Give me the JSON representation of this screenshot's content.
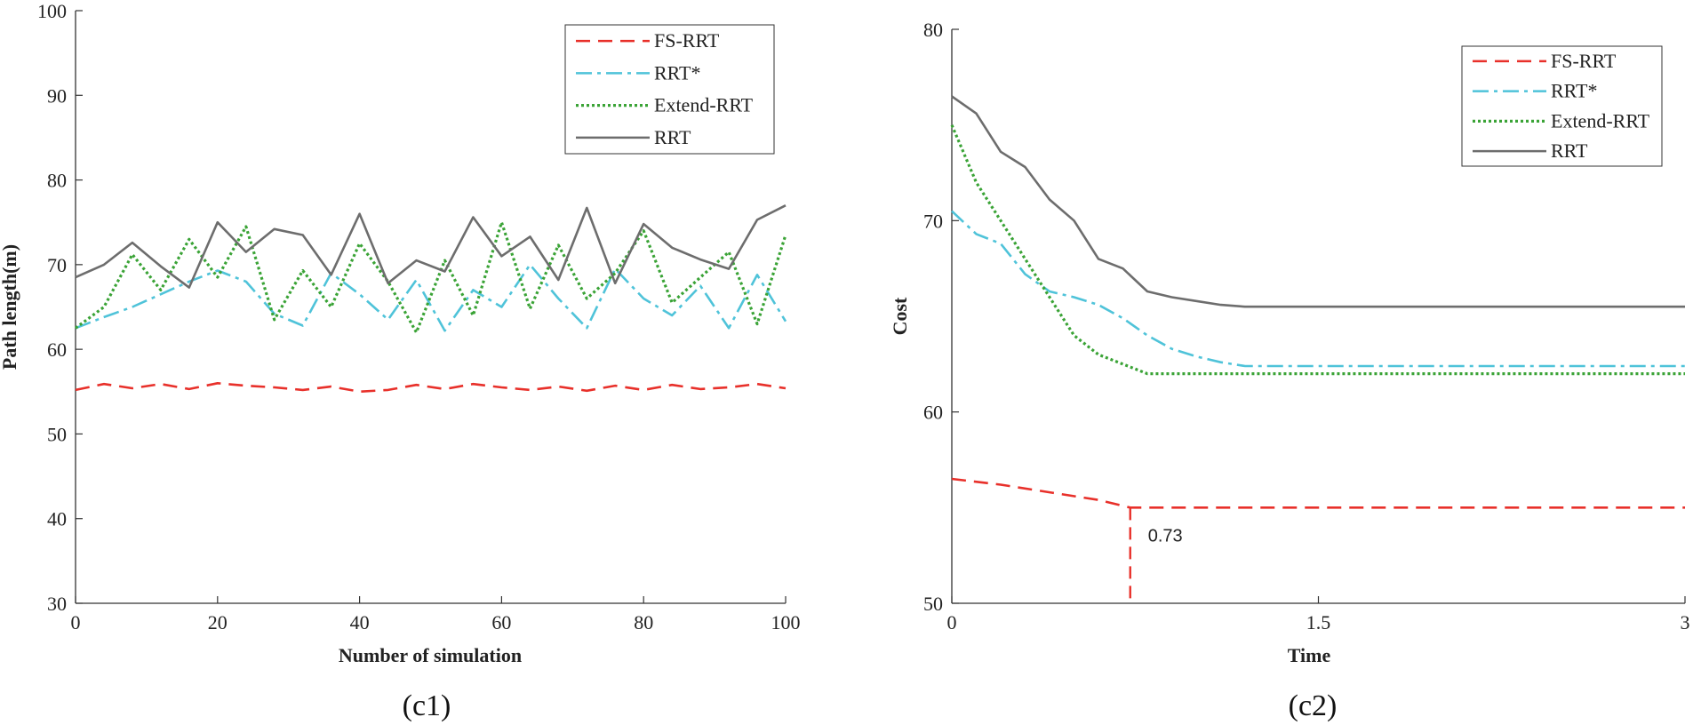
{
  "chart_data": [
    {
      "type": "line",
      "caption": "(c1)",
      "title": "",
      "xlabel": "Number of simulation",
      "ylabel": "Path length(m)",
      "xlim": [
        0,
        100
      ],
      "ylim": [
        30,
        100
      ],
      "xticks": [
        0,
        20,
        40,
        60,
        80,
        100
      ],
      "yticks": [
        30,
        40,
        50,
        60,
        70,
        80,
        90,
        100
      ],
      "legend_position": "top-right",
      "series": [
        {
          "name": "FS-RRT",
          "color": "#e8302a",
          "style": "dashed",
          "x": [
            0,
            4,
            8,
            12,
            16,
            20,
            24,
            28,
            32,
            36,
            40,
            44,
            48,
            52,
            56,
            60,
            64,
            68,
            72,
            76,
            80,
            84,
            88,
            92,
            96,
            100
          ],
          "values": [
            55.2,
            55.9,
            55.4,
            55.9,
            55.3,
            56.0,
            55.7,
            55.5,
            55.2,
            55.6,
            55.0,
            55.2,
            55.8,
            55.3,
            55.9,
            55.5,
            55.2,
            55.6,
            55.1,
            55.7,
            55.2,
            55.8,
            55.3,
            55.5,
            55.9,
            55.4
          ]
        },
        {
          "name": "RRT*",
          "color": "#4fc3d9",
          "style": "dashdot",
          "x": [
            0,
            4,
            8,
            12,
            16,
            20,
            24,
            28,
            32,
            36,
            40,
            44,
            48,
            52,
            56,
            60,
            64,
            68,
            72,
            76,
            80,
            84,
            88,
            92,
            96,
            100
          ],
          "values": [
            62.5,
            63.8,
            65.0,
            66.5,
            68.0,
            69.3,
            68.0,
            64.2,
            62.8,
            69.0,
            66.5,
            63.5,
            68.2,
            62.2,
            67.0,
            65.0,
            70.0,
            66.0,
            62.5,
            69.5,
            66.0,
            64.0,
            67.5,
            62.5,
            68.8,
            63.3
          ]
        },
        {
          "name": "Extend-RRT",
          "color": "#3aa336",
          "style": "dotted",
          "x": [
            0,
            4,
            8,
            12,
            16,
            20,
            24,
            28,
            32,
            36,
            40,
            44,
            48,
            52,
            56,
            60,
            64,
            68,
            72,
            76,
            80,
            84,
            88,
            92,
            96,
            100
          ],
          "values": [
            62.5,
            65.0,
            71.2,
            67.0,
            73.0,
            68.5,
            74.5,
            63.5,
            69.3,
            65.0,
            72.5,
            68.0,
            62.0,
            70.5,
            64.0,
            75.0,
            64.8,
            72.3,
            66.0,
            69.0,
            74.0,
            65.5,
            68.5,
            71.5,
            63.0,
            73.5
          ]
        },
        {
          "name": "RRT",
          "color": "#6d6d6d",
          "style": "solid",
          "x": [
            0,
            4,
            8,
            12,
            16,
            20,
            24,
            28,
            32,
            36,
            40,
            44,
            48,
            52,
            56,
            60,
            64,
            68,
            72,
            76,
            80,
            84,
            88,
            92,
            96,
            100
          ],
          "values": [
            68.5,
            70.0,
            72.6,
            69.8,
            67.3,
            75.0,
            71.5,
            74.2,
            73.5,
            68.8,
            76.0,
            67.8,
            70.5,
            69.2,
            75.6,
            71.0,
            73.3,
            68.2,
            76.7,
            67.8,
            74.8,
            72.0,
            70.6,
            69.5,
            75.3,
            77.0
          ]
        }
      ]
    },
    {
      "type": "line",
      "caption": "(c2)",
      "title": "",
      "xlabel": "Time",
      "ylabel": "Cost",
      "xlim": [
        0,
        3
      ],
      "ylim": [
        50,
        80
      ],
      "xticks": [
        0,
        1.5,
        3
      ],
      "yticks": [
        50,
        60,
        70,
        80
      ],
      "legend_position": "top-right",
      "annotation": {
        "text": "0.73",
        "x": 0.73,
        "y_from": 50,
        "y_to": 55
      },
      "series": [
        {
          "name": "FS-RRT",
          "color": "#e8302a",
          "style": "dashed",
          "x": [
            0,
            0.2,
            0.4,
            0.6,
            0.73,
            1.0,
            1.5,
            2.0,
            2.5,
            3.0
          ],
          "values": [
            56.5,
            56.2,
            55.8,
            55.4,
            55.0,
            55.0,
            55.0,
            55.0,
            55.0,
            55.0
          ]
        },
        {
          "name": "RRT*",
          "color": "#4fc3d9",
          "style": "dashdot",
          "x": [
            0,
            0.1,
            0.2,
            0.3,
            0.4,
            0.5,
            0.6,
            0.7,
            0.8,
            0.9,
            1.0,
            1.1,
            1.2,
            1.3,
            1.5,
            2.0,
            2.5,
            3.0
          ],
          "values": [
            70.5,
            69.3,
            68.8,
            67.2,
            66.3,
            66.0,
            65.6,
            64.9,
            64.0,
            63.3,
            62.9,
            62.6,
            62.4,
            62.4,
            62.4,
            62.4,
            62.4,
            62.4
          ]
        },
        {
          "name": "Extend-RRT",
          "color": "#3aa336",
          "style": "dotted",
          "x": [
            0,
            0.1,
            0.2,
            0.3,
            0.4,
            0.5,
            0.6,
            0.7,
            0.8,
            0.9,
            1.0,
            1.5,
            2.0,
            2.5,
            3.0
          ],
          "values": [
            75.0,
            72.0,
            70.0,
            68.0,
            66.0,
            64.0,
            63.0,
            62.5,
            62.0,
            62.0,
            62.0,
            62.0,
            62.0,
            62.0,
            62.0
          ]
        },
        {
          "name": "RRT",
          "color": "#6d6d6d",
          "style": "solid",
          "x": [
            0,
            0.1,
            0.2,
            0.3,
            0.4,
            0.5,
            0.6,
            0.7,
            0.8,
            0.9,
            1.0,
            1.1,
            1.2,
            1.3,
            1.5,
            2.0,
            2.5,
            3.0
          ],
          "values": [
            76.5,
            75.6,
            73.6,
            72.8,
            71.1,
            70.0,
            68.0,
            67.5,
            66.3,
            66.0,
            65.8,
            65.6,
            65.5,
            65.5,
            65.5,
            65.5,
            65.5,
            65.5
          ]
        }
      ]
    }
  ]
}
